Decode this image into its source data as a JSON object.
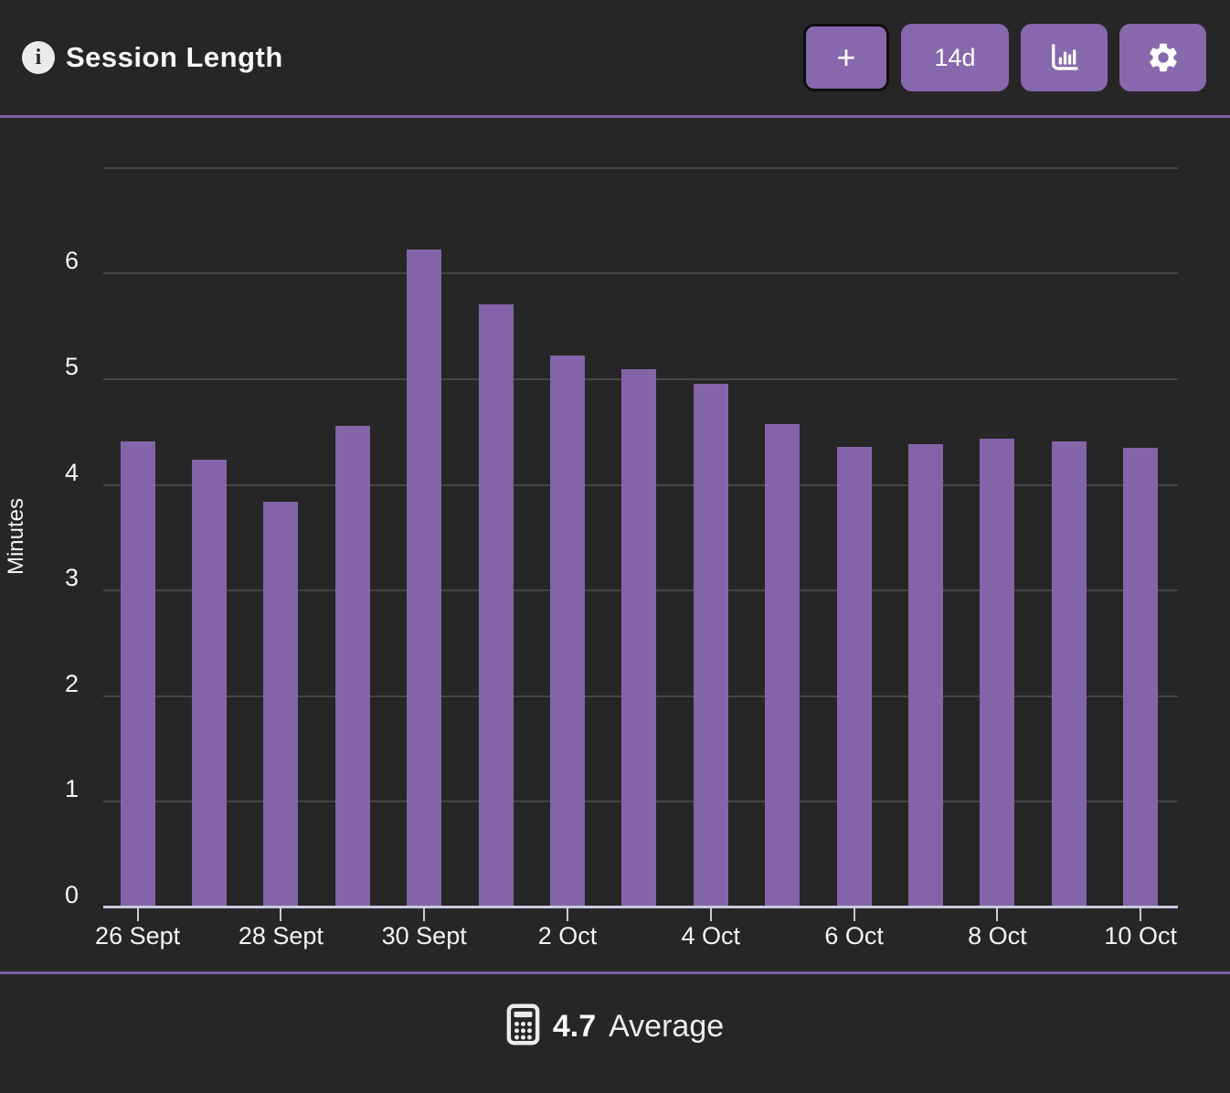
{
  "header": {
    "title": "Session Length",
    "info_glyph": "i",
    "buttons": [
      {
        "name": "add",
        "label": "+"
      },
      {
        "name": "range",
        "label": "14d"
      },
      {
        "name": "chart-type",
        "icon": "bar-chart-icon"
      },
      {
        "name": "settings",
        "icon": "gear-icon"
      }
    ]
  },
  "chart_data": {
    "type": "bar",
    "title": "Session Length",
    "xlabel": "",
    "ylabel": "Minutes",
    "ylim": [
      0,
      7
    ],
    "yticks": [
      0,
      1,
      2,
      3,
      4,
      5,
      6
    ],
    "top_gridline_value": 7,
    "grid": true,
    "bar_color": "#8464a8",
    "values": [
      4.4,
      4.23,
      3.83,
      4.55,
      6.22,
      5.7,
      5.22,
      5.09,
      4.95,
      4.57,
      4.35,
      4.38,
      4.43,
      4.4,
      4.34
    ],
    "x_tick_labels": [
      "26 Sept",
      "28 Sept",
      "30 Sept",
      "2 Oct",
      "4 Oct",
      "6 Oct",
      "8 Oct",
      "10 Oct"
    ],
    "x_tick_bar_indexes": [
      0,
      2,
      4,
      6,
      8,
      10,
      12,
      14
    ]
  },
  "footer": {
    "average_value": "4.7",
    "average_label": "Average"
  },
  "colors": {
    "background": "#262626",
    "bar": "#8464a8",
    "button": "#8868ac",
    "divider": "#7d5fa5",
    "gridline": "#474747",
    "axis_line": "#c9cade",
    "text": "#f2f2f2"
  }
}
